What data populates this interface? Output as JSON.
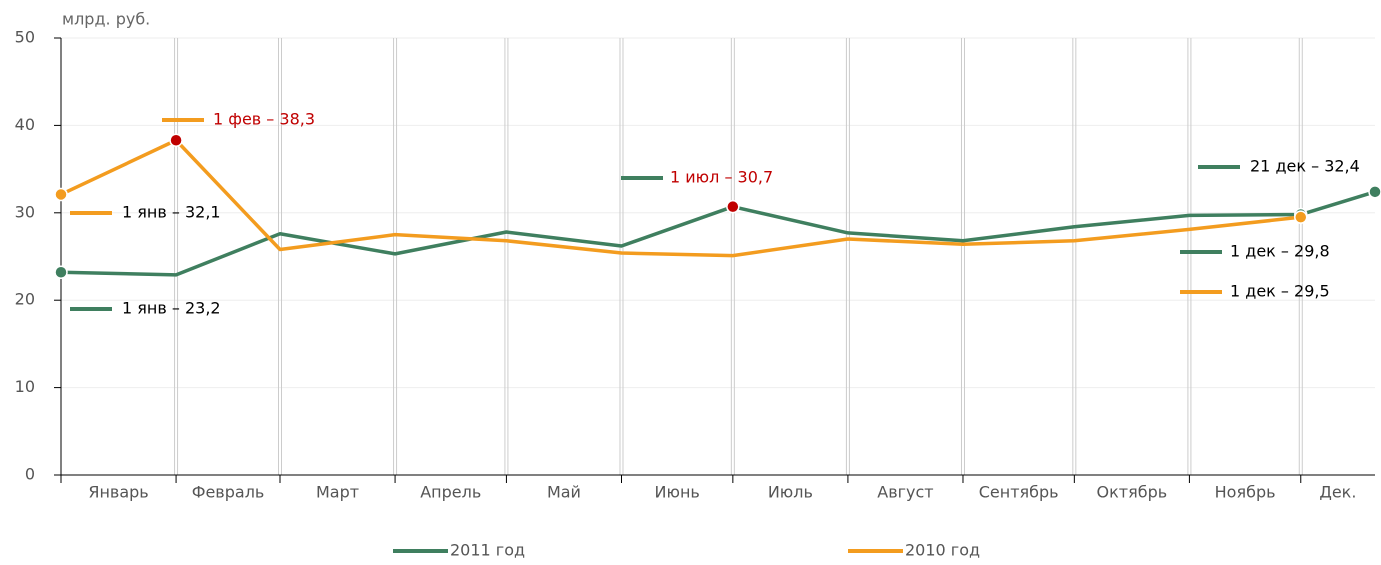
{
  "chart_data": {
    "type": "line",
    "y_label": "млрд. руб.",
    "categories": [
      "Январь",
      "Февраль",
      "Март",
      "Апрель",
      "Май",
      "Июнь",
      "Июль",
      "Август",
      "Сентябрь",
      "Октябрь",
      "Ноябрь",
      "Дек.",
      null
    ],
    "series": [
      {
        "name": "2011 год",
        "color": "#3f7f5f",
        "values": [
          23.2,
          22.9,
          27.6,
          25.3,
          27.8,
          26.2,
          30.7,
          27.7,
          26.8,
          28.4,
          29.7,
          29.8,
          32.4
        ]
      },
      {
        "name": "2010 год",
        "color": "#f39c1f",
        "values": [
          32.1,
          38.3,
          25.8,
          27.5,
          26.8,
          25.4,
          25.1,
          27.0,
          26.4,
          26.8,
          28.1,
          29.5,
          null
        ]
      }
    ],
    "annotations": [
      {
        "text": "1 фев – 38,3",
        "color": "#c00000"
      },
      {
        "text": "1 янв – 32,1",
        "color": "#000000"
      },
      {
        "text": "1 янв – 23,2",
        "color": "#000000"
      },
      {
        "text": "1 июл – 30,7",
        "color": "#c00000"
      },
      {
        "text": "21 дек – 32,4",
        "color": "#000000"
      },
      {
        "text": "1 дек – 29,8",
        "color": "#000000"
      },
      {
        "text": "1 дек – 29,5",
        "color": "#000000"
      }
    ],
    "highlight_color": "#c00000",
    "ylim": [
      0,
      50
    ],
    "yticks": [
      0,
      10,
      20,
      30,
      40,
      50
    ],
    "grid": true
  }
}
